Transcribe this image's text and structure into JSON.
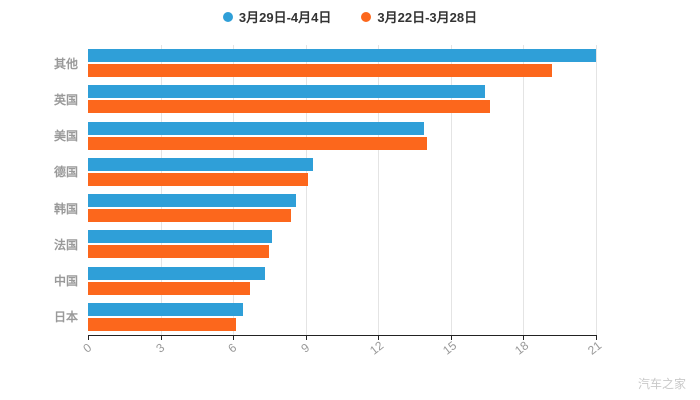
{
  "legend": {
    "items": [
      {
        "label": "3月29日-4月4日",
        "color": "#2f9fd8"
      },
      {
        "label": "3月22日-3月28日",
        "color": "#fc671c"
      }
    ]
  },
  "watermark": "汽车之家",
  "chart_data": {
    "type": "bar",
    "orientation": "horizontal",
    "title": "",
    "categories": [
      "其他",
      "英国",
      "美国",
      "德国",
      "韩国",
      "法国",
      "中国",
      "日本"
    ],
    "series": [
      {
        "name": "3月29日-4月4日",
        "color": "#2f9fd8",
        "values": [
          21.0,
          16.4,
          13.9,
          9.3,
          8.6,
          7.6,
          7.3,
          6.4
        ]
      },
      {
        "name": "3月22日-3月28日",
        "color": "#fc671c",
        "values": [
          19.2,
          16.6,
          14.0,
          9.1,
          8.4,
          7.5,
          6.7,
          6.1
        ]
      }
    ],
    "x_ticks": [
      0,
      3,
      6,
      9,
      12,
      15,
      18,
      21
    ],
    "xlim": [
      0,
      21
    ],
    "xlabel": "",
    "ylabel": "",
    "grid": true,
    "legend_position": "top"
  }
}
